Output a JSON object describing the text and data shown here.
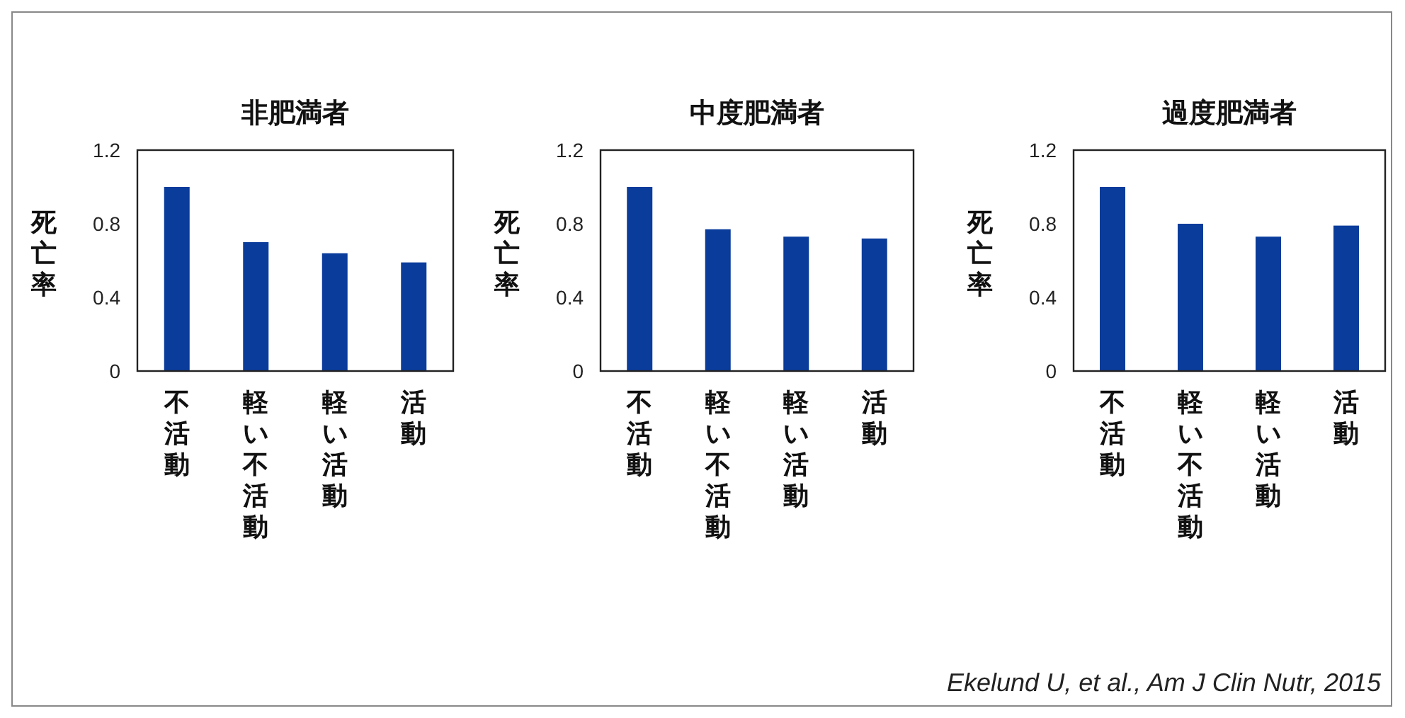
{
  "chart_data": [
    {
      "type": "bar",
      "title": "非肥満者",
      "ylabel": "死亡率",
      "categories": [
        "不活動",
        "軽い不活動",
        "軽い活動",
        "活動"
      ],
      "values": [
        1.0,
        0.7,
        0.64,
        0.59
      ],
      "color": "#0a3c9c",
      "ylim": [
        0,
        1.2
      ],
      "yticks": [
        0,
        0.4,
        0.8,
        1.2
      ],
      "grid": false
    },
    {
      "type": "bar",
      "title": "中度肥満者",
      "ylabel": "死亡率",
      "categories": [
        "不活動",
        "軽い不活動",
        "軽い活動",
        "活動"
      ],
      "values": [
        1.0,
        0.77,
        0.73,
        0.72
      ],
      "color": "#0a3c9c",
      "ylim": [
        0,
        1.2
      ],
      "yticks": [
        0,
        0.4,
        0.8,
        1.2
      ],
      "grid": false
    },
    {
      "type": "bar",
      "title": "過度肥満者",
      "ylabel": "死亡率",
      "categories": [
        "不活動",
        "軽い不活動",
        "軽い活動",
        "活動"
      ],
      "values": [
        1.0,
        0.8,
        0.73,
        0.79
      ],
      "color": "#0a3c9c",
      "ylim": [
        0,
        1.2
      ],
      "yticks": [
        0,
        0.4,
        0.8,
        1.2
      ],
      "grid": false,
      "annotations": [
        "Ekelund U, et al., Am J Clin Nutr, 2015"
      ]
    }
  ]
}
